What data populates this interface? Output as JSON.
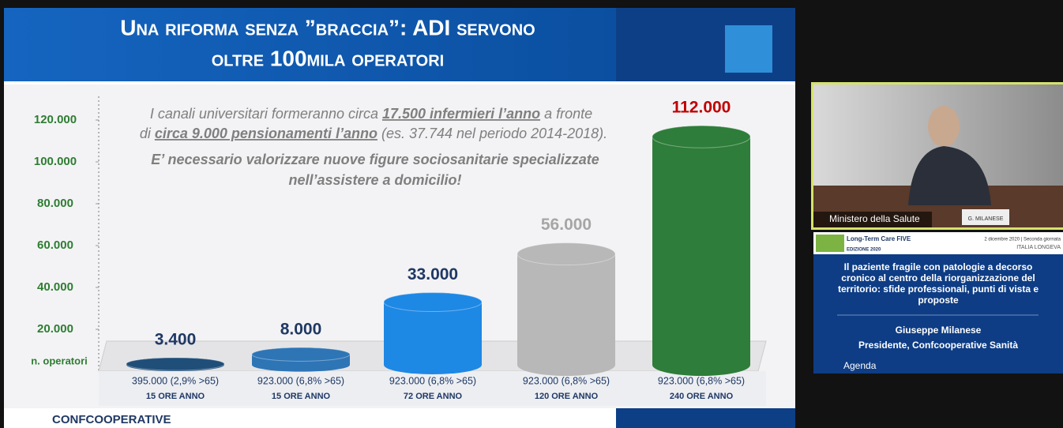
{
  "slide": {
    "title_lines": [
      "Una riforma senza ”braccia”: ADI servono",
      "oltre 100mila operatori"
    ],
    "note_1": {
      "line_1": [
        "I canali universitari formeranno circa ",
        "17.500 infermieri l’anno",
        " a fronte"
      ],
      "line_2": [
        "di ",
        "circa 9.000 pensionamenti l’anno",
        " (es. 37.744 nel periodo 2014-2018)."
      ]
    },
    "note_2_lines": [
      "E’ necessario valorizzare nuove figure sociosanitarie specializzate",
      "nell’assistere a domicilio!"
    ],
    "footer": "CONFCOOPERATIVE"
  },
  "chart_data": {
    "type": "bar",
    "y_label": "n. operatori",
    "categories": [
      "395.000 (2,9% >65)",
      "923.000 (6,8% >65)",
      "923.000 (6,8% >65)",
      "923.000 (6,8% >65)",
      "923.000 (6,8% >65)"
    ],
    "category_sublabels": [
      "15 ORE ANNO",
      "15 ORE ANNO",
      "72 ORE ANNO",
      "120 ORE ANNO",
      "240 ORE ANNO"
    ],
    "values": [
      3400,
      8000,
      33000,
      56000,
      112000
    ],
    "value_labels": [
      "3.400",
      "8.000",
      "33.000",
      "56.000",
      "112.000"
    ],
    "value_label_colors": [
      "#1f3864",
      "#1f3864",
      "#1f3864",
      "#a6a6a6",
      "#c00000"
    ],
    "colors": [
      "#1f4e79",
      "#2e75b6",
      "#1e88e5",
      "#b8b8b8",
      "#2e7d3a"
    ],
    "ylim": [
      0,
      120000
    ],
    "yticks": [
      {
        "value": 20000,
        "label": "20.000"
      },
      {
        "value": 40000,
        "label": "40.000"
      },
      {
        "value": 60000,
        "label": "60.000"
      },
      {
        "value": 80000,
        "label": "80.000"
      },
      {
        "value": 100000,
        "label": "100.000"
      },
      {
        "value": 120000,
        "label": "120.000"
      }
    ]
  },
  "side_panel": {
    "video_label": "Ministero della Salute",
    "name_plate": "G. MILANESE",
    "banner": {
      "event": "Long-Term Care FIVE",
      "edition": "EDIZIONE 2020",
      "date": "2 dicembre 2020 | Seconda giornata",
      "org": "ITALIA LONGEVA"
    },
    "topic_lines": [
      "Il paziente fragile con patologie a decorso",
      "cronico al centro della riorganizzazione del",
      "territorio: sfide professionali, punti di vista e",
      "proposte"
    ],
    "speaker": "Giuseppe Milanese",
    "role": "Presidente, Confcooperative Sanità",
    "agenda": "Agenda"
  }
}
